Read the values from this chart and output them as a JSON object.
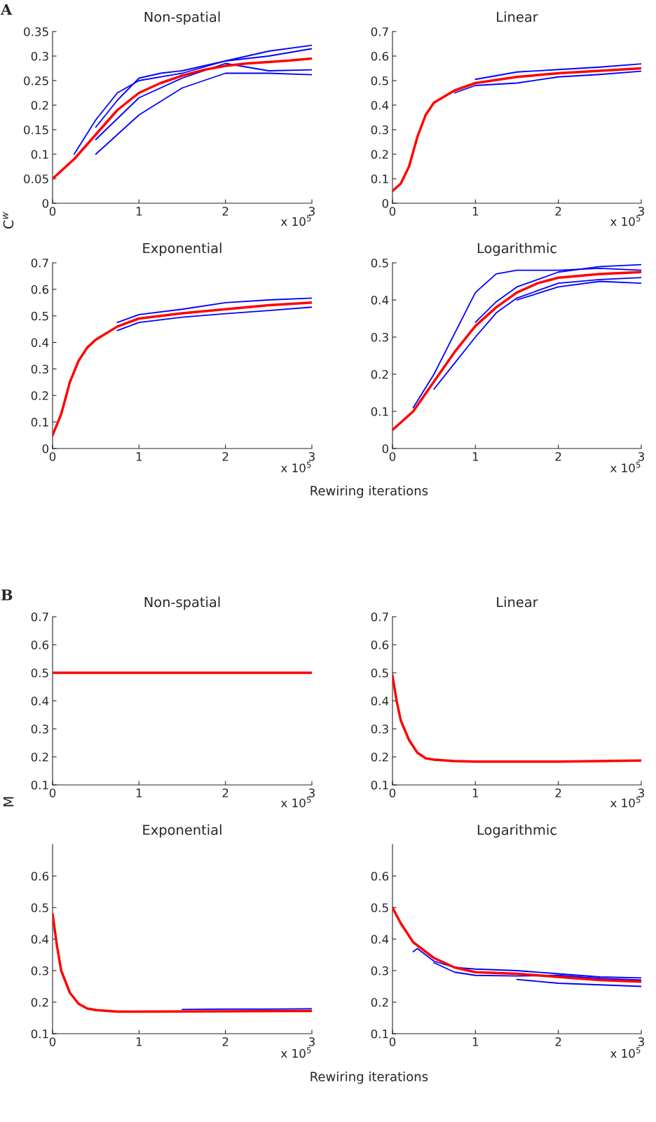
{
  "chart_data": [
    {
      "type": "line",
      "title": "Non-spatial",
      "ylabel": "C$^{w}$",
      "xlim": [
        0,
        3
      ],
      "xticks": [
        0,
        1,
        2,
        3
      ],
      "ylim": [
        0,
        0.35
      ],
      "yticks": [
        0,
        0.05,
        0.1,
        0.15,
        0.2,
        0.25,
        0.3,
        0.35
      ],
      "grid": false,
      "annotations": [
        "x 10$^{5}$",
        "A"
      ],
      "series": [
        {
          "color": "#0000ff",
          "x": [
            0.25,
            0.5,
            0.75,
            1,
            1.5,
            2,
            2.5,
            3
          ],
          "values": [
            0.1,
            0.17,
            0.225,
            0.25,
            0.265,
            0.29,
            0.31,
            0.322
          ]
        },
        {
          "color": "#0000ff",
          "x": [
            0.5,
            0.75,
            1,
            1.25,
            1.5,
            2,
            2.5,
            3
          ],
          "values": [
            0.155,
            0.21,
            0.255,
            0.265,
            0.27,
            0.29,
            0.3,
            0.315
          ]
        },
        {
          "color": "#0000ff",
          "x": [
            0.5,
            1,
            1.5,
            2,
            2.5,
            3
          ],
          "values": [
            0.13,
            0.215,
            0.255,
            0.285,
            0.27,
            0.272
          ]
        },
        {
          "color": "#0000ff",
          "x": [
            0.5,
            0.75,
            1,
            1.5,
            2,
            2.5,
            3
          ],
          "values": [
            0.1,
            0.14,
            0.18,
            0.235,
            0.265,
            0.265,
            0.262
          ]
        },
        {
          "color": "#ff0000",
          "x": [
            0,
            0.25,
            0.5,
            0.75,
            1,
            1.25,
            1.5,
            1.75,
            2,
            2.25,
            2.5,
            2.75,
            3
          ],
          "values": [
            0.05,
            0.09,
            0.14,
            0.19,
            0.225,
            0.245,
            0.26,
            0.272,
            0.28,
            0.285,
            0.288,
            0.291,
            0.295
          ]
        }
      ]
    },
    {
      "type": "line",
      "title": "Linear",
      "xlim": [
        0,
        3
      ],
      "xticks": [
        0,
        1,
        2,
        3
      ],
      "ylim": [
        0,
        0.7
      ],
      "yticks": [
        0,
        0.1,
        0.2,
        0.3,
        0.4,
        0.5,
        0.6,
        0.7
      ],
      "grid": false,
      "annotations": [
        "x 10$^{5}$"
      ],
      "series": [
        {
          "color": "#0000ff",
          "x": [
            1,
            1.5,
            2,
            2.5,
            3
          ],
          "values": [
            0.505,
            0.535,
            0.545,
            0.555,
            0.568
          ]
        },
        {
          "color": "#0000ff",
          "x": [
            0.75,
            1,
            1.5,
            2,
            2.5,
            3
          ],
          "values": [
            0.45,
            0.48,
            0.49,
            0.515,
            0.525,
            0.538
          ]
        },
        {
          "color": "#ff0000",
          "x": [
            0,
            0.1,
            0.2,
            0.3,
            0.4,
            0.5,
            0.75,
            1,
            1.5,
            2,
            2.5,
            3
          ],
          "values": [
            0.05,
            0.08,
            0.15,
            0.27,
            0.36,
            0.41,
            0.46,
            0.49,
            0.515,
            0.53,
            0.54,
            0.55
          ]
        }
      ]
    },
    {
      "type": "line",
      "title": "Exponential",
      "xlabel": "Rewiring iterations",
      "xlim": [
        0,
        3
      ],
      "xticks": [
        0,
        1,
        2,
        3
      ],
      "ylim": [
        0,
        0.7
      ],
      "yticks": [
        0,
        0.1,
        0.2,
        0.3,
        0.4,
        0.5,
        0.6,
        0.7
      ],
      "grid": false,
      "annotations": [
        "x 10$^{5}$"
      ],
      "series": [
        {
          "color": "#0000ff",
          "x": [
            0.75,
            1,
            1.5,
            2,
            2.5,
            3
          ],
          "values": [
            0.475,
            0.505,
            0.525,
            0.55,
            0.56,
            0.567
          ]
        },
        {
          "color": "#0000ff",
          "x": [
            0.75,
            1,
            1.5,
            2,
            2.5,
            3
          ],
          "values": [
            0.445,
            0.475,
            0.495,
            0.508,
            0.52,
            0.533
          ]
        },
        {
          "color": "#ff0000",
          "x": [
            0,
            0.1,
            0.2,
            0.3,
            0.4,
            0.5,
            0.75,
            1,
            1.5,
            2,
            2.5,
            3
          ],
          "values": [
            0.05,
            0.13,
            0.25,
            0.33,
            0.38,
            0.41,
            0.46,
            0.49,
            0.51,
            0.525,
            0.54,
            0.55
          ]
        }
      ]
    },
    {
      "type": "line",
      "title": "Logarithmic",
      "xlim": [
        0,
        3
      ],
      "xticks": [
        0,
        1,
        2,
        3
      ],
      "ylim": [
        0,
        0.5
      ],
      "yticks": [
        0,
        0.1,
        0.2,
        0.3,
        0.4,
        0.5
      ],
      "grid": false,
      "annotations": [
        "x 10$^{5}$"
      ],
      "series": [
        {
          "color": "#0000ff",
          "x": [
            0.25,
            0.5,
            0.75,
            1,
            1.25,
            1.5,
            2,
            2.5,
            3
          ],
          "values": [
            0.11,
            0.2,
            0.31,
            0.42,
            0.47,
            0.48,
            0.48,
            0.485,
            0.48
          ]
        },
        {
          "color": "#0000ff",
          "x": [
            1,
            1.25,
            1.5,
            2,
            2.5,
            3
          ],
          "values": [
            0.34,
            0.395,
            0.435,
            0.475,
            0.49,
            0.495
          ]
        },
        {
          "color": "#0000ff",
          "x": [
            0.5,
            0.75,
            1,
            1.25,
            1.5,
            2,
            2.5,
            3
          ],
          "values": [
            0.16,
            0.23,
            0.3,
            0.365,
            0.405,
            0.445,
            0.455,
            0.46
          ]
        },
        {
          "color": "#0000ff",
          "x": [
            1.5,
            2,
            2.5,
            3
          ],
          "values": [
            0.4,
            0.435,
            0.45,
            0.445
          ]
        },
        {
          "color": "#ff0000",
          "x": [
            0,
            0.25,
            0.5,
            0.75,
            1,
            1.25,
            1.5,
            1.75,
            2,
            2.5,
            3
          ],
          "values": [
            0.05,
            0.1,
            0.18,
            0.26,
            0.33,
            0.38,
            0.42,
            0.445,
            0.46,
            0.47,
            0.475
          ]
        }
      ]
    },
    {
      "type": "line",
      "title": "Non-spatial",
      "ylabel": "M",
      "xlim": [
        0,
        3
      ],
      "xticks": [
        0,
        1,
        2,
        3
      ],
      "ylim": [
        0.1,
        0.7
      ],
      "yticks": [
        0.1,
        0.2,
        0.3,
        0.4,
        0.5,
        0.6,
        0.7
      ],
      "grid": false,
      "annotations": [
        "x 10$^{5}$",
        "B"
      ],
      "series": [
        {
          "color": "#ff0000",
          "x": [
            0,
            1,
            2,
            3
          ],
          "values": [
            0.5,
            0.5,
            0.5,
            0.5
          ]
        }
      ]
    },
    {
      "type": "line",
      "title": "Linear",
      "xlim": [
        0,
        3
      ],
      "xticks": [
        0,
        1,
        2,
        3
      ],
      "ylim": [
        0.1,
        0.7
      ],
      "yticks": [
        0.1,
        0.2,
        0.3,
        0.4,
        0.5,
        0.6,
        0.7
      ],
      "grid": false,
      "annotations": [
        "x 10$^{5}$"
      ],
      "series": [
        {
          "color": "#ff0000",
          "x": [
            0,
            0.05,
            0.1,
            0.2,
            0.3,
            0.4,
            0.5,
            0.75,
            1,
            2,
            3
          ],
          "values": [
            0.49,
            0.4,
            0.33,
            0.26,
            0.215,
            0.195,
            0.19,
            0.185,
            0.183,
            0.183,
            0.187
          ]
        }
      ]
    },
    {
      "type": "line",
      "title": "Exponential",
      "xlabel": "Rewiring iterations",
      "xlim": [
        0,
        3
      ],
      "xticks": [
        0,
        1,
        2,
        3
      ],
      "ylim": [
        0.1,
        0.7
      ],
      "yticks": [
        0.1,
        0.2,
        0.3,
        0.4,
        0.5,
        0.6
      ],
      "grid": false,
      "annotations": [
        "x 10$^{5}$"
      ],
      "series": [
        {
          "color": "#0000ff",
          "x": [
            1.5,
            2,
            2.5,
            3
          ],
          "values": [
            0.177,
            0.178,
            0.178,
            0.179
          ]
        },
        {
          "color": "#ff0000",
          "x": [
            0,
            0.05,
            0.1,
            0.2,
            0.3,
            0.4,
            0.5,
            0.75,
            1,
            2,
            3
          ],
          "values": [
            0.48,
            0.38,
            0.3,
            0.23,
            0.195,
            0.18,
            0.175,
            0.17,
            0.17,
            0.171,
            0.172
          ]
        }
      ]
    },
    {
      "type": "line",
      "title": "Logarithmic",
      "xlim": [
        0,
        3
      ],
      "xticks": [
        0,
        1,
        2,
        3
      ],
      "ylim": [
        0.1,
        0.7
      ],
      "yticks": [
        0.1,
        0.2,
        0.3,
        0.4,
        0.5,
        0.6
      ],
      "grid": false,
      "annotations": [
        "x 10$^{5}$"
      ],
      "series": [
        {
          "color": "#0000ff",
          "x": [
            0.25,
            0.3,
            0.4,
            0.5,
            0.75,
            1,
            1.5,
            2,
            2.5,
            3
          ],
          "values": [
            0.36,
            0.37,
            0.35,
            0.33,
            0.31,
            0.305,
            0.3,
            0.29,
            0.28,
            0.277
          ]
        },
        {
          "color": "#0000ff",
          "x": [
            0.5,
            0.75,
            1,
            1.5,
            2,
            2.5,
            3
          ],
          "values": [
            0.325,
            0.295,
            0.285,
            0.283,
            0.285,
            0.275,
            0.27
          ]
        },
        {
          "color": "#0000ff",
          "x": [
            1.5,
            2,
            2.5,
            3
          ],
          "values": [
            0.272,
            0.26,
            0.255,
            0.25
          ]
        },
        {
          "color": "#ff0000",
          "x": [
            0,
            0.1,
            0.25,
            0.5,
            0.75,
            1,
            1.5,
            2,
            2.5,
            3
          ],
          "values": [
            0.5,
            0.45,
            0.39,
            0.34,
            0.31,
            0.295,
            0.29,
            0.28,
            0.27,
            0.265
          ]
        }
      ]
    }
  ]
}
